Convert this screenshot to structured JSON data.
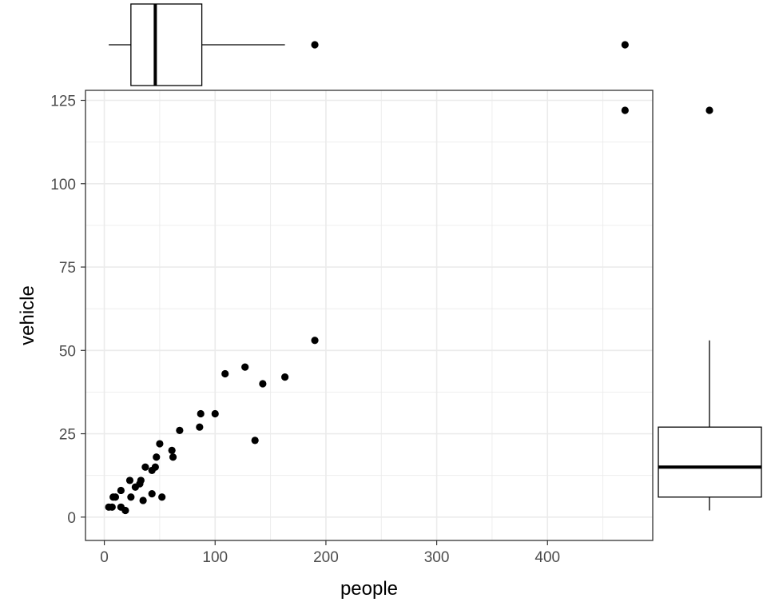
{
  "chart_data": {
    "type": "scatter",
    "title": "",
    "xlabel": "people",
    "ylabel": "vehicle",
    "xlim": [
      -17,
      495
    ],
    "ylim": [
      -7,
      128
    ],
    "x_ticks": [
      0,
      100,
      200,
      300,
      400
    ],
    "y_ticks": [
      0,
      25,
      50,
      75,
      100,
      125
    ],
    "grid": true,
    "legend": "none",
    "points": [
      {
        "x": 470,
        "y": 122
      },
      {
        "x": 190,
        "y": 53
      },
      {
        "x": 127,
        "y": 45
      },
      {
        "x": 109,
        "y": 43
      },
      {
        "x": 163,
        "y": 42
      },
      {
        "x": 143,
        "y": 40
      },
      {
        "x": 87,
        "y": 31
      },
      {
        "x": 100,
        "y": 31
      },
      {
        "x": 86,
        "y": 27
      },
      {
        "x": 68,
        "y": 26
      },
      {
        "x": 136,
        "y": 23
      },
      {
        "x": 50,
        "y": 22
      },
      {
        "x": 61,
        "y": 20
      },
      {
        "x": 62,
        "y": 18
      },
      {
        "x": 47,
        "y": 18
      },
      {
        "x": 37,
        "y": 15
      },
      {
        "x": 46,
        "y": 15
      },
      {
        "x": 43,
        "y": 14
      },
      {
        "x": 23,
        "y": 11
      },
      {
        "x": 33,
        "y": 11
      },
      {
        "x": 32,
        "y": 10
      },
      {
        "x": 28,
        "y": 9
      },
      {
        "x": 15,
        "y": 8
      },
      {
        "x": 43,
        "y": 7
      },
      {
        "x": 10,
        "y": 6
      },
      {
        "x": 8,
        "y": 6
      },
      {
        "x": 24,
        "y": 6
      },
      {
        "x": 52,
        "y": 6
      },
      {
        "x": 35,
        "y": 5
      },
      {
        "x": 4,
        "y": 3
      },
      {
        "x": 7,
        "y": 3
      },
      {
        "x": 15,
        "y": 3
      },
      {
        "x": 19,
        "y": 2
      }
    ],
    "x_boxplot": {
      "whisker_low": 4,
      "q1": 24,
      "median": 46,
      "q3": 88,
      "whisker_high": 163,
      "outliers": [
        190,
        470
      ]
    },
    "y_boxplot": {
      "whisker_low": 2,
      "q1": 6,
      "median": 15,
      "q3": 27,
      "whisker_high": 53,
      "outliers": [
        122
      ]
    },
    "colors": {
      "points": "#000000",
      "grid": "#ebebeb",
      "panel_border": "#333333",
      "tick_text": "#4d4d4d"
    }
  }
}
